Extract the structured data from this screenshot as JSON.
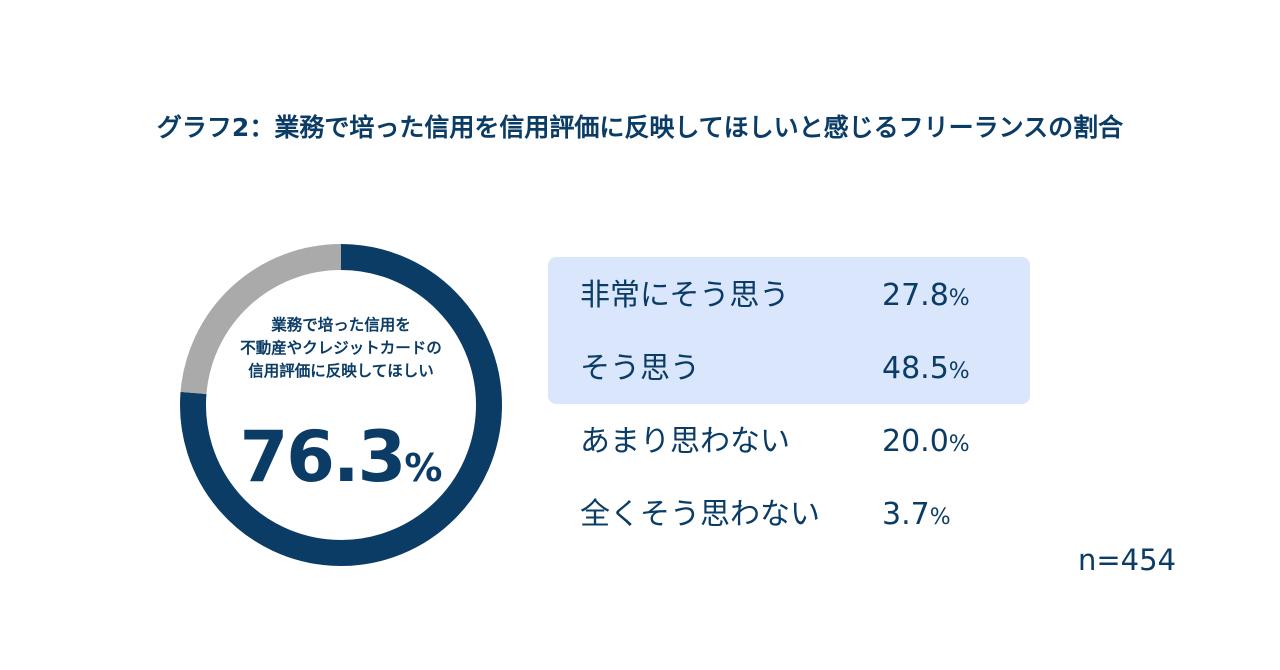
{
  "title": "グラフ2：業務で培った信用を信用評価に反映してほしいと感じるフリーランスの割合",
  "center": {
    "line1": "業務で培った信用を",
    "line2": "不動産やクレジットカードの",
    "line3": "信用評価に反映してほしい",
    "value": "76.3",
    "unit": "%"
  },
  "sample_size": "n=454",
  "colors": {
    "primary": "#0b3c66",
    "secondary": "#aaaaaa",
    "highlight": "#d9e6fb"
  },
  "chart_data": {
    "type": "pie",
    "style": "donut",
    "slices": [
      {
        "label": "業務で培った信用を不動産やクレジットカードの信用評価に反映してほしい",
        "value": 76.3,
        "color": "#0b3c66"
      },
      {
        "label": "",
        "value": 23.7,
        "color": "#aaaaaa"
      }
    ],
    "categories": [
      {
        "label": "非常にそう思う",
        "value": "27.8",
        "unit": "%",
        "highlighted": true
      },
      {
        "label": "そう思う",
        "value": "48.5",
        "unit": "%",
        "highlighted": true
      },
      {
        "label": "あまり思わない",
        "value": "20.0",
        "unit": "%",
        "highlighted": false
      },
      {
        "label": "全くそう思わない",
        "value": "3.7",
        "unit": "%",
        "highlighted": false
      }
    ]
  }
}
